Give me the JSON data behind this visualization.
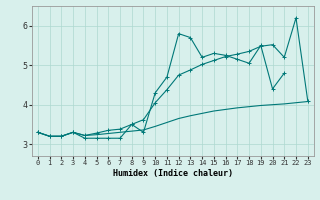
{
  "xlabel": "Humidex (Indice chaleur)",
  "bg_color": "#d8f0ec",
  "grid_color": "#aed8d0",
  "line_color": "#007878",
  "x": [
    0,
    1,
    2,
    3,
    4,
    5,
    6,
    7,
    8,
    9,
    10,
    11,
    12,
    13,
    14,
    15,
    16,
    17,
    18,
    19,
    20,
    21,
    22,
    23
  ],
  "line1_jagged": [
    3.3,
    3.2,
    3.2,
    3.3,
    3.15,
    3.15,
    3.15,
    3.15,
    3.5,
    3.3,
    4.3,
    4.7,
    5.8,
    5.7,
    5.2,
    5.3,
    5.25,
    5.15,
    5.05,
    5.5,
    4.4,
    4.8,
    null,
    null
  ],
  "line2_smooth": [
    3.3,
    3.2,
    3.2,
    3.3,
    3.22,
    3.24,
    3.27,
    3.3,
    3.33,
    3.36,
    3.45,
    3.55,
    3.65,
    3.72,
    3.78,
    3.84,
    3.88,
    3.92,
    3.95,
    3.98,
    4.0,
    4.02,
    4.05,
    4.08
  ],
  "line3_top": [
    3.3,
    3.2,
    3.2,
    3.3,
    3.22,
    3.28,
    3.35,
    3.38,
    3.5,
    3.62,
    4.05,
    4.38,
    4.75,
    4.88,
    5.02,
    5.12,
    5.22,
    5.28,
    5.35,
    5.48,
    5.52,
    5.2,
    6.2,
    4.1
  ],
  "ylim": [
    2.7,
    6.5
  ],
  "xlim": [
    -0.5,
    23.5
  ],
  "yticks": [
    3,
    4,
    5,
    6
  ],
  "xticks": [
    0,
    1,
    2,
    3,
    4,
    5,
    6,
    7,
    8,
    9,
    10,
    11,
    12,
    13,
    14,
    15,
    16,
    17,
    18,
    19,
    20,
    21,
    22,
    23
  ]
}
